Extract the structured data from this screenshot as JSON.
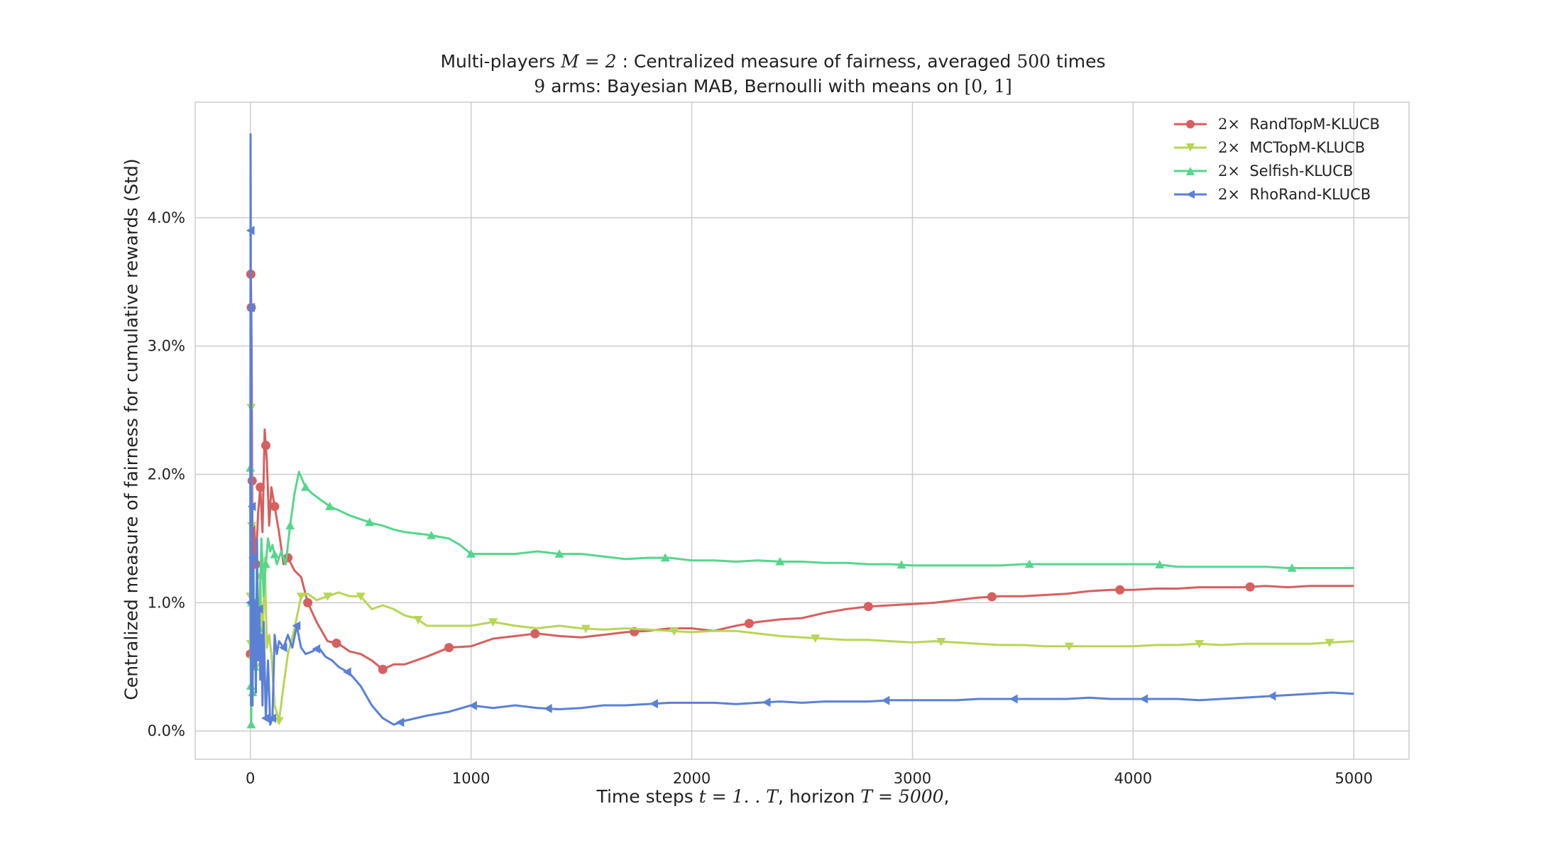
{
  "chart_data": {
    "type": "line",
    "title_parts": {
      "line1_pre": "Multi-players ",
      "line1_math": "M = 2",
      "line1_mid": " : Centralized measure of fairness, averaged ",
      "line1_num": "500",
      "line1_post": " times",
      "line2_num": "9",
      "line2_mid": " arms: Bayesian MAB, Bernoulli with means on ",
      "line2_math": "[0, 1]"
    },
    "xlabel_parts": {
      "pre": "Time steps ",
      "math1": "t = 1. . T",
      "mid": ", horizon ",
      "math2": "T = 5000",
      "post": ","
    },
    "ylabel": "Centralized measure of fairness for cumulative rewards (Std)",
    "xlim": [
      -250,
      5250
    ],
    "ylim": [
      -0.22,
      4.9
    ],
    "xticks": [
      0,
      1000,
      2000,
      3000,
      4000,
      5000
    ],
    "yticks": [
      0,
      1,
      2,
      3,
      4
    ],
    "ytick_labels": [
      "0.0%",
      "1.0%",
      "2.0%",
      "3.0%",
      "4.0%"
    ],
    "grid": true,
    "legend_position": "top-right",
    "series": [
      {
        "name": "RandTopM-KLUCB",
        "legend_prefix": "2×",
        "color": "#d65f5f",
        "marker": "circle",
        "x": [
          0,
          2,
          4,
          6,
          8,
          12,
          18,
          25,
          35,
          45,
          55,
          65,
          75,
          85,
          95,
          110,
          130,
          150,
          170,
          200,
          230,
          260,
          300,
          350,
          400,
          450,
          500,
          550,
          600,
          650,
          700,
          800,
          900,
          1000,
          1100,
          1200,
          1300,
          1400,
          1500,
          1600,
          1700,
          1800,
          1900,
          2000,
          2100,
          2200,
          2300,
          2400,
          2500,
          2600,
          2700,
          2800,
          2900,
          3000,
          3100,
          3200,
          3300,
          3400,
          3500,
          3600,
          3700,
          3800,
          3900,
          4000,
          4100,
          4200,
          4300,
          4400,
          4500,
          4600,
          4700,
          4800,
          4900,
          5000
        ],
        "y": [
          0.6,
          3.56,
          3.3,
          2.85,
          1.95,
          1.0,
          1.6,
          1.3,
          1.7,
          1.9,
          1.55,
          2.35,
          2.1,
          1.6,
          1.9,
          1.75,
          1.55,
          1.3,
          1.35,
          1.25,
          1.2,
          1.0,
          0.85,
          0.7,
          0.68,
          0.62,
          0.6,
          0.55,
          0.48,
          0.52,
          0.52,
          0.58,
          0.65,
          0.66,
          0.72,
          0.74,
          0.76,
          0.74,
          0.73,
          0.75,
          0.77,
          0.78,
          0.8,
          0.8,
          0.78,
          0.82,
          0.85,
          0.87,
          0.88,
          0.92,
          0.95,
          0.97,
          0.98,
          0.99,
          1.0,
          1.02,
          1.04,
          1.05,
          1.05,
          1.06,
          1.07,
          1.09,
          1.1,
          1.1,
          1.11,
          1.11,
          1.12,
          1.12,
          1.12,
          1.13,
          1.12,
          1.13,
          1.13,
          1.13
        ],
        "markers_x": [
          0,
          2,
          4,
          8,
          12,
          25,
          45,
          70,
          110,
          170,
          260,
          390,
          600,
          900,
          1290,
          1740,
          2260,
          2800,
          3360,
          3940,
          4530
        ]
      },
      {
        "name": "MCTopM-KLUCB",
        "legend_prefix": "2×",
        "color": "#b8d655",
        "marker": "triangle-down",
        "x": [
          0,
          2,
          4,
          6,
          10,
          15,
          25,
          35,
          45,
          55,
          65,
          75,
          85,
          95,
          110,
          130,
          150,
          170,
          200,
          230,
          260,
          300,
          350,
          400,
          450,
          500,
          550,
          600,
          650,
          700,
          750,
          800,
          900,
          1000,
          1100,
          1200,
          1300,
          1400,
          1500,
          1600,
          1700,
          1800,
          1900,
          2000,
          2100,
          2200,
          2300,
          2400,
          2500,
          2600,
          2700,
          2800,
          2900,
          3000,
          3100,
          3200,
          3300,
          3400,
          3500,
          3600,
          3700,
          3800,
          3900,
          4000,
          4100,
          4200,
          4300,
          4400,
          4500,
          4600,
          4700,
          4800,
          4900,
          5000
        ],
        "y": [
          1.05,
          0.68,
          2.52,
          1.6,
          0.55,
          0.85,
          0.5,
          0.7,
          1.2,
          0.6,
          1.35,
          0.65,
          0.75,
          0.6,
          0.2,
          0.08,
          0.35,
          0.6,
          0.8,
          1.05,
          1.07,
          1.02,
          1.05,
          1.08,
          1.05,
          1.05,
          0.95,
          0.98,
          0.95,
          0.9,
          0.88,
          0.82,
          0.82,
          0.82,
          0.85,
          0.82,
          0.8,
          0.82,
          0.8,
          0.79,
          0.8,
          0.79,
          0.78,
          0.77,
          0.78,
          0.78,
          0.76,
          0.74,
          0.73,
          0.72,
          0.71,
          0.71,
          0.7,
          0.69,
          0.7,
          0.69,
          0.68,
          0.67,
          0.67,
          0.66,
          0.66,
          0.66,
          0.66,
          0.66,
          0.67,
          0.67,
          0.68,
          0.67,
          0.68,
          0.68,
          0.68,
          0.68,
          0.69,
          0.7
        ],
        "markers_x": [
          0,
          2,
          4,
          6,
          10,
          15,
          25,
          45,
          130,
          230,
          350,
          500,
          760,
          1100,
          1520,
          1920,
          2560,
          3130,
          3710,
          4300,
          4890
        ]
      },
      {
        "name": "Selfish-KLUCB",
        "legend_prefix": "2×",
        "color": "#55d68c",
        "marker": "triangle-up",
        "x": [
          0,
          2,
          4,
          6,
          10,
          15,
          20,
          30,
          40,
          50,
          60,
          70,
          80,
          90,
          100,
          120,
          140,
          160,
          180,
          200,
          220,
          250,
          280,
          320,
          360,
          400,
          450,
          500,
          550,
          600,
          650,
          700,
          800,
          900,
          950,
          1000,
          1100,
          1200,
          1300,
          1400,
          1500,
          1600,
          1700,
          1800,
          1900,
          2000,
          2100,
          2200,
          2300,
          2400,
          2500,
          2600,
          2700,
          2800,
          2900,
          3000,
          3100,
          3200,
          3300,
          3400,
          3500,
          3600,
          3700,
          3800,
          3900,
          4000,
          4100,
          4200,
          4300,
          4400,
          4500,
          4600,
          4700,
          4800,
          4900,
          5000
        ],
        "y": [
          2.05,
          0.35,
          0.05,
          1.0,
          0.3,
          1.25,
          0.5,
          1.1,
          0.8,
          1.5,
          1.05,
          1.3,
          1.5,
          1.4,
          1.45,
          1.3,
          1.4,
          1.3,
          1.6,
          1.85,
          2.02,
          1.9,
          1.85,
          1.8,
          1.75,
          1.72,
          1.68,
          1.65,
          1.62,
          1.6,
          1.57,
          1.55,
          1.53,
          1.5,
          1.45,
          1.38,
          1.38,
          1.38,
          1.4,
          1.38,
          1.38,
          1.36,
          1.34,
          1.35,
          1.35,
          1.33,
          1.33,
          1.32,
          1.33,
          1.32,
          1.32,
          1.31,
          1.31,
          1.3,
          1.3,
          1.29,
          1.29,
          1.29,
          1.29,
          1.29,
          1.3,
          1.3,
          1.3,
          1.3,
          1.3,
          1.3,
          1.3,
          1.28,
          1.28,
          1.28,
          1.28,
          1.28,
          1.27,
          1.27,
          1.27,
          1.27
        ],
        "markers_x": [
          0,
          2,
          4,
          6,
          10,
          20,
          40,
          70,
          110,
          180,
          250,
          360,
          540,
          820,
          1000,
          1400,
          1880,
          2400,
          2950,
          3530,
          4120,
          4720
        ]
      },
      {
        "name": "RhoRand-KLUCB",
        "legend_prefix": "2×",
        "color": "#5b80d6",
        "marker": "triangle-left",
        "x": [
          0,
          1,
          2,
          3,
          4,
          5,
          6,
          8,
          10,
          12,
          15,
          20,
          25,
          30,
          35,
          40,
          45,
          50,
          55,
          60,
          70,
          80,
          90,
          100,
          110,
          120,
          130,
          150,
          170,
          190,
          210,
          230,
          250,
          280,
          310,
          340,
          370,
          400,
          450,
          500,
          550,
          600,
          650,
          700,
          800,
          900,
          1000,
          1100,
          1200,
          1300,
          1400,
          1500,
          1600,
          1700,
          1800,
          1900,
          2000,
          2100,
          2200,
          2300,
          2400,
          2500,
          2600,
          2700,
          2800,
          2900,
          3000,
          3100,
          3200,
          3300,
          3400,
          3500,
          3600,
          3700,
          3800,
          3900,
          4000,
          4100,
          4200,
          4300,
          4400,
          4500,
          4600,
          4700,
          4800,
          4900,
          5000
        ],
        "y": [
          1.0,
          4.65,
          3.9,
          0.2,
          3.3,
          1.2,
          0.3,
          1.75,
          0.2,
          1.35,
          0.5,
          1.0,
          0.3,
          1.5,
          0.55,
          0.95,
          0.4,
          0.75,
          0.2,
          0.85,
          0.1,
          0.55,
          0.05,
          0.1,
          0.75,
          0.6,
          0.7,
          0.65,
          0.75,
          0.65,
          0.82,
          0.65,
          0.6,
          0.62,
          0.65,
          0.58,
          0.55,
          0.5,
          0.45,
          0.35,
          0.2,
          0.1,
          0.05,
          0.08,
          0.12,
          0.15,
          0.2,
          0.18,
          0.2,
          0.18,
          0.17,
          0.18,
          0.2,
          0.2,
          0.21,
          0.22,
          0.22,
          0.22,
          0.21,
          0.22,
          0.23,
          0.22,
          0.23,
          0.23,
          0.23,
          0.24,
          0.24,
          0.24,
          0.24,
          0.25,
          0.25,
          0.25,
          0.25,
          0.25,
          0.26,
          0.25,
          0.25,
          0.25,
          0.25,
          0.24,
          0.25,
          0.26,
          0.27,
          0.28,
          0.29,
          0.3,
          0.29
        ],
        "markers_x": [
          0,
          2,
          4,
          8,
          12,
          20,
          40,
          70,
          100,
          150,
          210,
          300,
          440,
          680,
          1010,
          1350,
          1830,
          2340,
          2880,
          3460,
          4050,
          4630
        ]
      }
    ]
  }
}
